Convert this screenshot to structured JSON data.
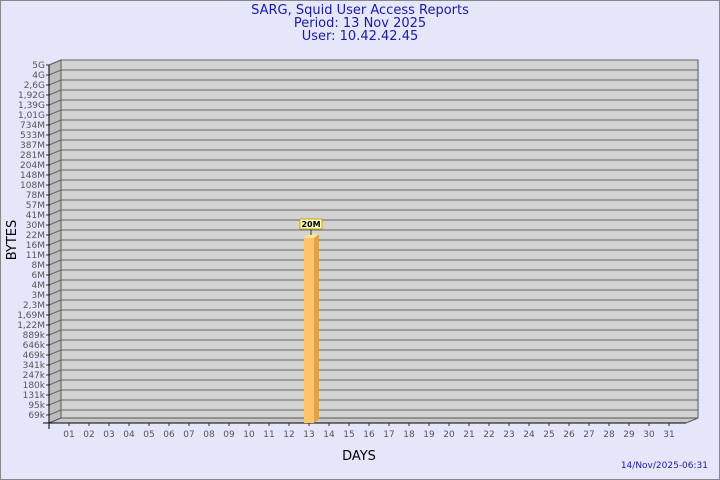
{
  "header": {
    "title": "SARG, Squid User Access Reports",
    "period": "Period: 13 Nov 2025",
    "user": "User: 10.42.42.45"
  },
  "timestamp": "14/Nov/2025-06:31",
  "colors": {
    "background": "#e6e6fa",
    "plot": "#d3d3d3",
    "bar": "#ffc46a",
    "bar_side": "#e0a24a",
    "title": "#1a1aa6"
  },
  "chart_data": {
    "type": "bar",
    "xlabel": "DAYS",
    "ylabel": "BYTES",
    "categories": [
      "01",
      "02",
      "03",
      "04",
      "05",
      "06",
      "07",
      "08",
      "09",
      "10",
      "11",
      "12",
      "13",
      "14",
      "15",
      "16",
      "17",
      "18",
      "19",
      "20",
      "21",
      "22",
      "23",
      "24",
      "25",
      "26",
      "27",
      "28",
      "29",
      "30",
      "31"
    ],
    "values": [
      null,
      null,
      null,
      null,
      null,
      null,
      null,
      null,
      null,
      null,
      null,
      null,
      "20M",
      null,
      null,
      null,
      null,
      null,
      null,
      null,
      null,
      null,
      null,
      null,
      null,
      null,
      null,
      null,
      null,
      null,
      null
    ],
    "data_labels": {
      "13": "20M"
    },
    "y_ticks": [
      "5G",
      "4G",
      "2,6G",
      "1,92G",
      "1,39G",
      "1,01G",
      "734M",
      "533M",
      "387M",
      "281M",
      "204M",
      "148M",
      "108M",
      "78M",
      "57M",
      "41M",
      "30M",
      "22M",
      "16M",
      "11M",
      "8M",
      "6M",
      "4M",
      "3M",
      "2,3M",
      "1,69M",
      "1,22M",
      "889k",
      "646k",
      "469k",
      "341k",
      "247k",
      "180k",
      "131k",
      "95k",
      "69k"
    ],
    "grid": true
  }
}
